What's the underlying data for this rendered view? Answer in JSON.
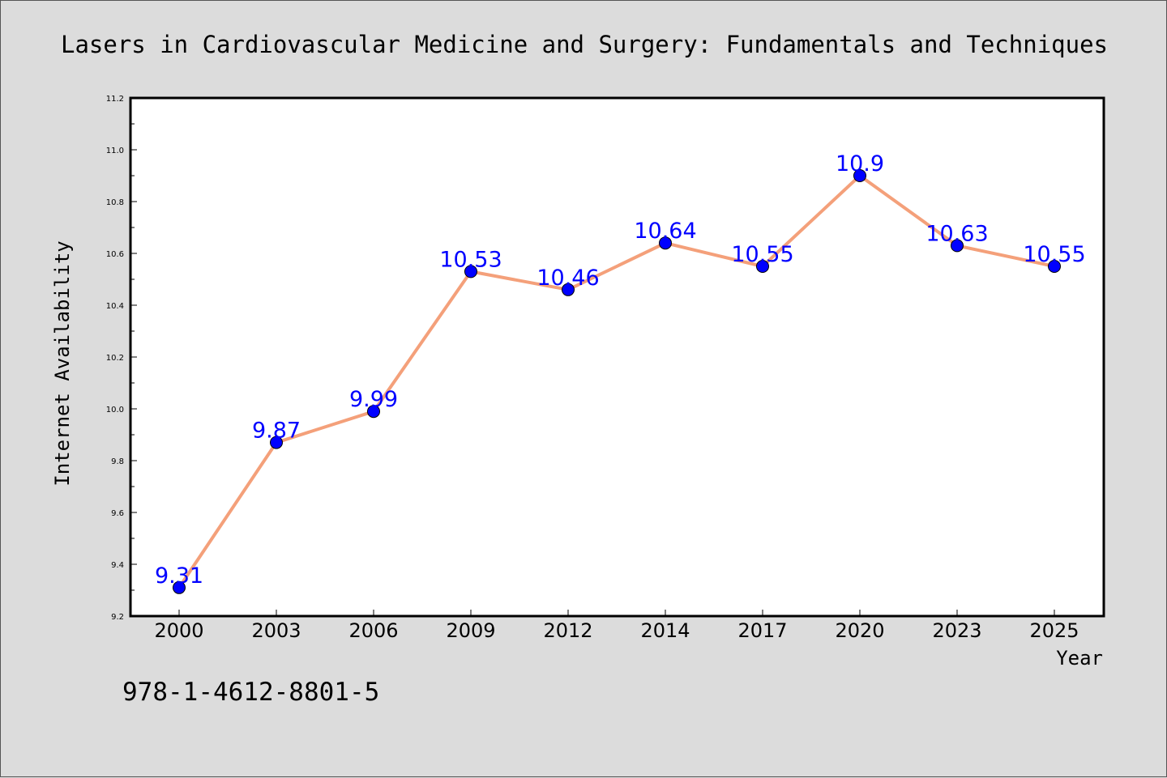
{
  "chart_data": {
    "type": "line",
    "title": "Lasers in Cardiovascular Medicine and Surgery: Fundamentals and Techniques",
    "xlabel": "Year",
    "ylabel": "Internet Availability",
    "categories": [
      "2000",
      "2003",
      "2006",
      "2009",
      "2012",
      "2014",
      "2017",
      "2020",
      "2023",
      "2025"
    ],
    "values": [
      9.31,
      9.87,
      9.99,
      10.53,
      10.46,
      10.64,
      10.55,
      10.9,
      10.63,
      10.55
    ],
    "data_labels": [
      "9.31",
      "9.87",
      "9.99",
      "10.53",
      "10.46",
      "10.64",
      "10.55",
      "10.9",
      "10.63",
      "10.55"
    ],
    "ylim": [
      9.2,
      11.2
    ],
    "yticks": [
      "9.2",
      "9.4",
      "9.6",
      "9.8",
      "10.0",
      "10.2",
      "10.4",
      "10.6",
      "10.8",
      "11.0",
      "11.2"
    ],
    "grid": false,
    "line_color": "#f4a07a",
    "marker_color": "#0000ff",
    "label_color": "#0000ff"
  },
  "footer": {
    "isbn": "978-1-4612-8801-5"
  }
}
